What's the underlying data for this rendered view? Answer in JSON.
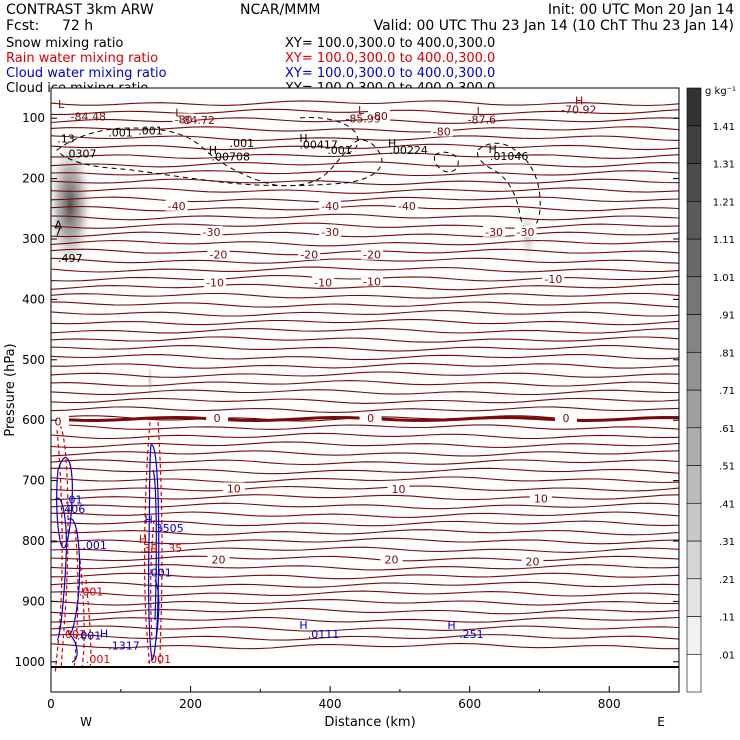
{
  "colors": {
    "snow": "#000000",
    "rain": "#dd0000",
    "cloud_water": "#0000cc",
    "cloud_ice": "#000000",
    "temperature": "#7a0a0a",
    "text": "#000000"
  },
  "header": {
    "title_left": "CONTRAST",
    "model": "3km ARW",
    "center": "NCAR/MMM",
    "init": "Init: 00 UTC Mon 20 Jan 14",
    "fcst_label": "Fcst:",
    "fcst_value": "72 h",
    "valid": "Valid: 00 UTC Thu 23 Jan 14 (10 ChT Thu 23 Jan 14)"
  },
  "legend": [
    {
      "name": "Snow mixing ratio",
      "xy": "XY= 100.0,300.0 to 400.0,300.0",
      "color": "#000000"
    },
    {
      "name": "Rain water mixing ratio",
      "xy": "XY= 100.0,300.0 to 400.0,300.0",
      "color": "#dd0000"
    },
    {
      "name": "Cloud water mixing ratio",
      "xy": "XY= 100.0,300.0 to 400.0,300.0",
      "color": "#0000cc"
    },
    {
      "name": "Cloud ice mixing ratio",
      "xy": "XY= 100.0,300.0 to 400.0,300.0",
      "color": "#000000"
    }
  ],
  "chart_data": {
    "type": "cross-section",
    "xlabel": "Distance (km)",
    "ylabel": "Pressure (hPa)",
    "xlim": [
      0,
      900
    ],
    "ylim": [
      1050,
      50
    ],
    "x_ticks": [
      0,
      200,
      400,
      600,
      800
    ],
    "y_ticks": [
      100,
      200,
      300,
      400,
      500,
      600,
      700,
      800,
      900,
      1000
    ],
    "x_ends": {
      "left": "W",
      "right": "E"
    },
    "colorbar": {
      "unit": "g kg⁻¹",
      "levels": [
        ".01",
        ".11",
        ".21",
        ".31",
        ".41",
        ".51",
        ".61",
        ".71",
        ".81",
        ".91",
        "1.01",
        "1.11",
        "1.21",
        "1.31",
        "1.41"
      ]
    },
    "temperature_labels": [
      {
        "x": 190,
        "p": 102,
        "text": "-80"
      },
      {
        "x": 470,
        "p": 96,
        "text": "-80"
      },
      {
        "x": 560,
        "p": 122,
        "text": "-80"
      },
      {
        "x": 180,
        "p": 245,
        "text": "-40"
      },
      {
        "x": 400,
        "p": 245,
        "text": "-40"
      },
      {
        "x": 510,
        "p": 245,
        "text": "-40"
      },
      {
        "x": 230,
        "p": 288,
        "text": "-30"
      },
      {
        "x": 400,
        "p": 288,
        "text": "-30"
      },
      {
        "x": 635,
        "p": 288,
        "text": "-30"
      },
      {
        "x": 680,
        "p": 288,
        "text": "-30"
      },
      {
        "x": 240,
        "p": 326,
        "text": "-20"
      },
      {
        "x": 370,
        "p": 326,
        "text": "-20"
      },
      {
        "x": 460,
        "p": 326,
        "text": "-20"
      },
      {
        "x": 235,
        "p": 372,
        "text": "-10"
      },
      {
        "x": 390,
        "p": 372,
        "text": "-10"
      },
      {
        "x": 460,
        "p": 370,
        "text": "-10"
      },
      {
        "x": 720,
        "p": 366,
        "text": "-10"
      },
      {
        "x": 10,
        "p": 602,
        "text": "0"
      },
      {
        "x": 238,
        "p": 596,
        "text": "0"
      },
      {
        "x": 458,
        "p": 596,
        "text": "0"
      },
      {
        "x": 738,
        "p": 596,
        "text": "0"
      },
      {
        "x": 262,
        "p": 713,
        "text": "10"
      },
      {
        "x": 498,
        "p": 714,
        "text": "10"
      },
      {
        "x": 702,
        "p": 730,
        "text": "10"
      },
      {
        "x": 240,
        "p": 831,
        "text": "20"
      },
      {
        "x": 488,
        "p": 831,
        "text": "20"
      },
      {
        "x": 690,
        "p": 834,
        "text": "20"
      }
    ],
    "annotations": [
      {
        "x": 10,
        "p": 83,
        "text": "L",
        "color": "#7a0a0a"
      },
      {
        "x": 28,
        "p": 104,
        "text": "-84.48",
        "color": "#7a0a0a"
      },
      {
        "x": 178,
        "p": 97,
        "text": "L",
        "color": "#7a0a0a"
      },
      {
        "x": 184,
        "p": 110,
        "text": "-84.72",
        "color": "#7a0a0a"
      },
      {
        "x": 440,
        "p": 93,
        "text": "L",
        "color": "#7a0a0a"
      },
      {
        "x": 422,
        "p": 107,
        "text": "-85.99",
        "color": "#7a0a0a"
      },
      {
        "x": 610,
        "p": 95,
        "text": "L",
        "color": "#7a0a0a"
      },
      {
        "x": 597,
        "p": 109,
        "text": "-87.6",
        "color": "#7a0a0a"
      },
      {
        "x": 751,
        "p": 77,
        "text": "H",
        "color": "#7a0a0a"
      },
      {
        "x": 731,
        "p": 92,
        "text": "-70.92",
        "color": "#7a0a0a"
      },
      {
        "x": 82,
        "p": 130,
        "text": ".001",
        "color": "#000000"
      },
      {
        "x": 125,
        "p": 127,
        "text": ".001",
        "color": "#000000"
      },
      {
        "x": 256,
        "p": 148,
        "text": ".001",
        "color": "#000000"
      },
      {
        "x": 396,
        "p": 159,
        "text": ".001",
        "color": "#000000"
      },
      {
        "x": 9,
        "p": 140,
        "text": ".13",
        "color": "#000000"
      },
      {
        "x": 20,
        "p": 165,
        "text": ".0307",
        "color": "#000000"
      },
      {
        "x": 226,
        "p": 159,
        "text": "H",
        "color": "#000000"
      },
      {
        "x": 230,
        "p": 170,
        "text": ".00708",
        "color": "#000000"
      },
      {
        "x": 356,
        "p": 139,
        "text": "H",
        "color": "#000000"
      },
      {
        "x": 356,
        "p": 150,
        "text": ".00417",
        "color": "#000000"
      },
      {
        "x": 483,
        "p": 148,
        "text": "H",
        "color": "#000000"
      },
      {
        "x": 485,
        "p": 159,
        "text": ".00224",
        "color": "#000000"
      },
      {
        "x": 627,
        "p": 158,
        "text": "H",
        "color": "#000000"
      },
      {
        "x": 629,
        "p": 169,
        "text": ".01046",
        "color": "#000000"
      },
      {
        "x": 5,
        "p": 283,
        "text": "A",
        "color": "#000000"
      },
      {
        "x": 5,
        "p": 294,
        "text": "7",
        "color": "#000000"
      },
      {
        "x": 10,
        "p": 338,
        "text": ".497",
        "color": "#000000"
      },
      {
        "x": 20,
        "p": 738,
        "text": ".01",
        "color": "#0000cc"
      },
      {
        "x": 14,
        "p": 754,
        "text": ".406",
        "color": "#0000cc"
      },
      {
        "x": 45,
        "p": 813,
        "text": ".001",
        "color": "#0000cc"
      },
      {
        "x": 40,
        "p": 890,
        "text": ".001",
        "color": "#dd0000"
      },
      {
        "x": 15,
        "p": 961,
        "text": ".001",
        "color": "#dd0000"
      },
      {
        "x": 37,
        "p": 963,
        "text": ".001",
        "color": "#0000cc"
      },
      {
        "x": 50,
        "p": 1002,
        "text": ".001",
        "color": "#dd0000"
      },
      {
        "x": 70,
        "p": 960,
        "text": "H",
        "color": "#0000cc"
      },
      {
        "x": 82,
        "p": 980,
        "text": ".1317",
        "color": "#0000cc"
      },
      {
        "x": 134,
        "p": 771,
        "text": "H",
        "color": "#0000cc"
      },
      {
        "x": 145,
        "p": 785,
        "text": ".3505",
        "color": "#0000cc"
      },
      {
        "x": 126,
        "p": 803,
        "text": "H",
        "color": "#dd0000"
      },
      {
        "x": 128,
        "p": 818,
        "text": ".39",
        "color": "#dd0000"
      },
      {
        "x": 168,
        "p": 818,
        "text": "35",
        "color": "#dd0000"
      },
      {
        "x": 138,
        "p": 859,
        "text": ".001",
        "color": "#0000cc"
      },
      {
        "x": 137,
        "p": 1002,
        "text": ".001",
        "color": "#dd0000"
      },
      {
        "x": 356,
        "p": 946,
        "text": "H",
        "color": "#0000cc"
      },
      {
        "x": 368,
        "p": 961,
        "text": ".0111",
        "color": "#0000cc"
      },
      {
        "x": 568,
        "p": 946,
        "text": "H",
        "color": "#0000cc"
      },
      {
        "x": 585,
        "p": 961,
        "text": ".251",
        "color": "#0000cc"
      }
    ]
  }
}
